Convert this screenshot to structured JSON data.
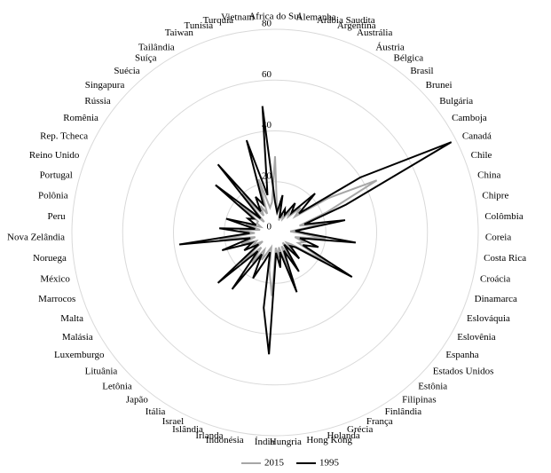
{
  "chart_data": {
    "type": "radar",
    "categories": [
      "Africa do Sul",
      "Alemanha",
      "Arábia Saudita",
      "Argentina",
      "Austrália",
      "Áustria",
      "Bélgica",
      "Brasil",
      "Brunei",
      "Bulgária",
      "Camboja",
      "Canadá",
      "Chile",
      "China",
      "Chipre",
      "Colômbia",
      "Coreia",
      "Costa Rica",
      "Croácia",
      "Dinamarca",
      "Eslováquia",
      "Eslovênia",
      "Espanha",
      "Estados Unidos",
      "Estônia",
      "Filipinas",
      "Finlândia",
      "França",
      "Grécia",
      "Holanda",
      "Hong Kong",
      "Hungria",
      "Índia",
      "Indonésia",
      "Irlanda",
      "Islândia",
      "Israel",
      "Itália",
      "Japão",
      "Letônia",
      "Lituânia",
      "Luxemburgo",
      "Malásia",
      "Malta",
      "Marrocos",
      "México",
      "Noruega",
      "Nova Zelândia",
      "Peru",
      "Polônia",
      "Portugal",
      "Reino Unido",
      "Rep. Tcheca",
      "Romênia",
      "Rússia",
      "Singapura",
      "Suécia",
      "Suíça",
      "Tailândia",
      "Taiwan",
      "Tunísia",
      "Turquia",
      "Vietnam"
    ],
    "series": [
      {
        "name": "2015",
        "color": "#a6a6a6",
        "values": [
          30,
          8,
          12,
          5,
          8,
          6,
          10,
          8,
          14,
          10,
          25,
          45,
          22,
          10,
          20,
          6,
          10,
          20,
          8,
          12,
          10,
          25,
          8,
          6,
          10,
          5,
          12,
          6,
          18,
          6,
          10,
          6,
          25,
          15,
          6,
          8,
          12,
          8,
          15,
          8,
          18,
          6,
          10,
          8,
          14,
          8,
          22,
          8,
          14,
          6,
          12,
          6,
          8,
          8,
          18,
          6,
          20,
          8,
          12,
          8,
          22,
          10,
          12
        ]
      },
      {
        "name": "1995",
        "color": "#000000",
        "values": [
          12,
          8,
          15,
          6,
          10,
          8,
          14,
          10,
          22,
          12,
          40,
          78,
          30,
          12,
          28,
          8,
          12,
          32,
          10,
          18,
          12,
          35,
          10,
          8,
          14,
          6,
          18,
          8,
          25,
          8,
          14,
          8,
          48,
          30,
          8,
          12,
          20,
          10,
          28,
          10,
          30,
          8,
          14,
          10,
          22,
          10,
          38,
          10,
          22,
          8,
          20,
          8,
          12,
          10,
          30,
          8,
          35,
          10,
          16,
          12,
          38,
          15,
          50
        ]
      }
    ],
    "rlim": [
      0,
      80
    ],
    "rticks": [
      0,
      20,
      40,
      60,
      80
    ],
    "grid": true
  }
}
